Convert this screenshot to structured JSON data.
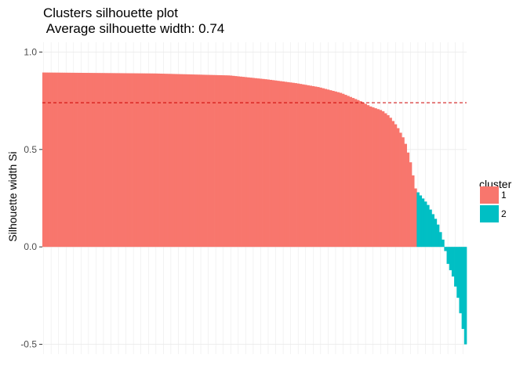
{
  "chart_data": {
    "type": "bar",
    "title": "Clusters silhouette plot",
    "subtitle": " Average silhouette width: 0.74",
    "xlabel": "",
    "ylabel": "Silhouette width Si",
    "ylim": [
      -0.55,
      1.05
    ],
    "yticks": [
      -0.5,
      0.0,
      0.5,
      1.0
    ],
    "ytick_labels": [
      "-0.5",
      "0.0",
      "0.5",
      "1.0"
    ],
    "grid": true,
    "average_line": {
      "value": 0.74,
      "color": "#cc0000",
      "style": "dashed"
    },
    "legend": {
      "title": "cluster",
      "position": "right",
      "entries": [
        {
          "label": "1",
          "color": "#F8766D"
        },
        {
          "label": "2",
          "color": "#00BFC4"
        }
      ]
    },
    "series": [
      {
        "name": "1",
        "color": "#F8766D",
        "n": 150,
        "profile": [
          [
            0,
            0.895
          ],
          [
            0.3,
            0.89
          ],
          [
            0.5,
            0.88
          ],
          [
            0.6,
            0.86
          ],
          [
            0.68,
            0.84
          ],
          [
            0.74,
            0.82
          ],
          [
            0.8,
            0.79
          ],
          [
            0.85,
            0.75
          ],
          [
            0.88,
            0.72
          ],
          [
            0.91,
            0.7
          ],
          [
            0.93,
            0.67
          ],
          [
            0.95,
            0.62
          ],
          [
            0.97,
            0.55
          ],
          [
            0.985,
            0.45
          ],
          [
            1,
            0.3
          ]
        ]
      },
      {
        "name": "2",
        "color": "#00BFC4",
        "n": 20,
        "profile": [
          [
            0,
            0.28
          ],
          [
            0.2,
            0.22
          ],
          [
            0.4,
            0.13
          ],
          [
            0.55,
            0.02
          ],
          [
            0.62,
            -0.08
          ],
          [
            0.75,
            -0.16
          ],
          [
            0.85,
            -0.27
          ],
          [
            0.92,
            -0.38
          ],
          [
            1,
            -0.5
          ]
        ]
      }
    ]
  }
}
